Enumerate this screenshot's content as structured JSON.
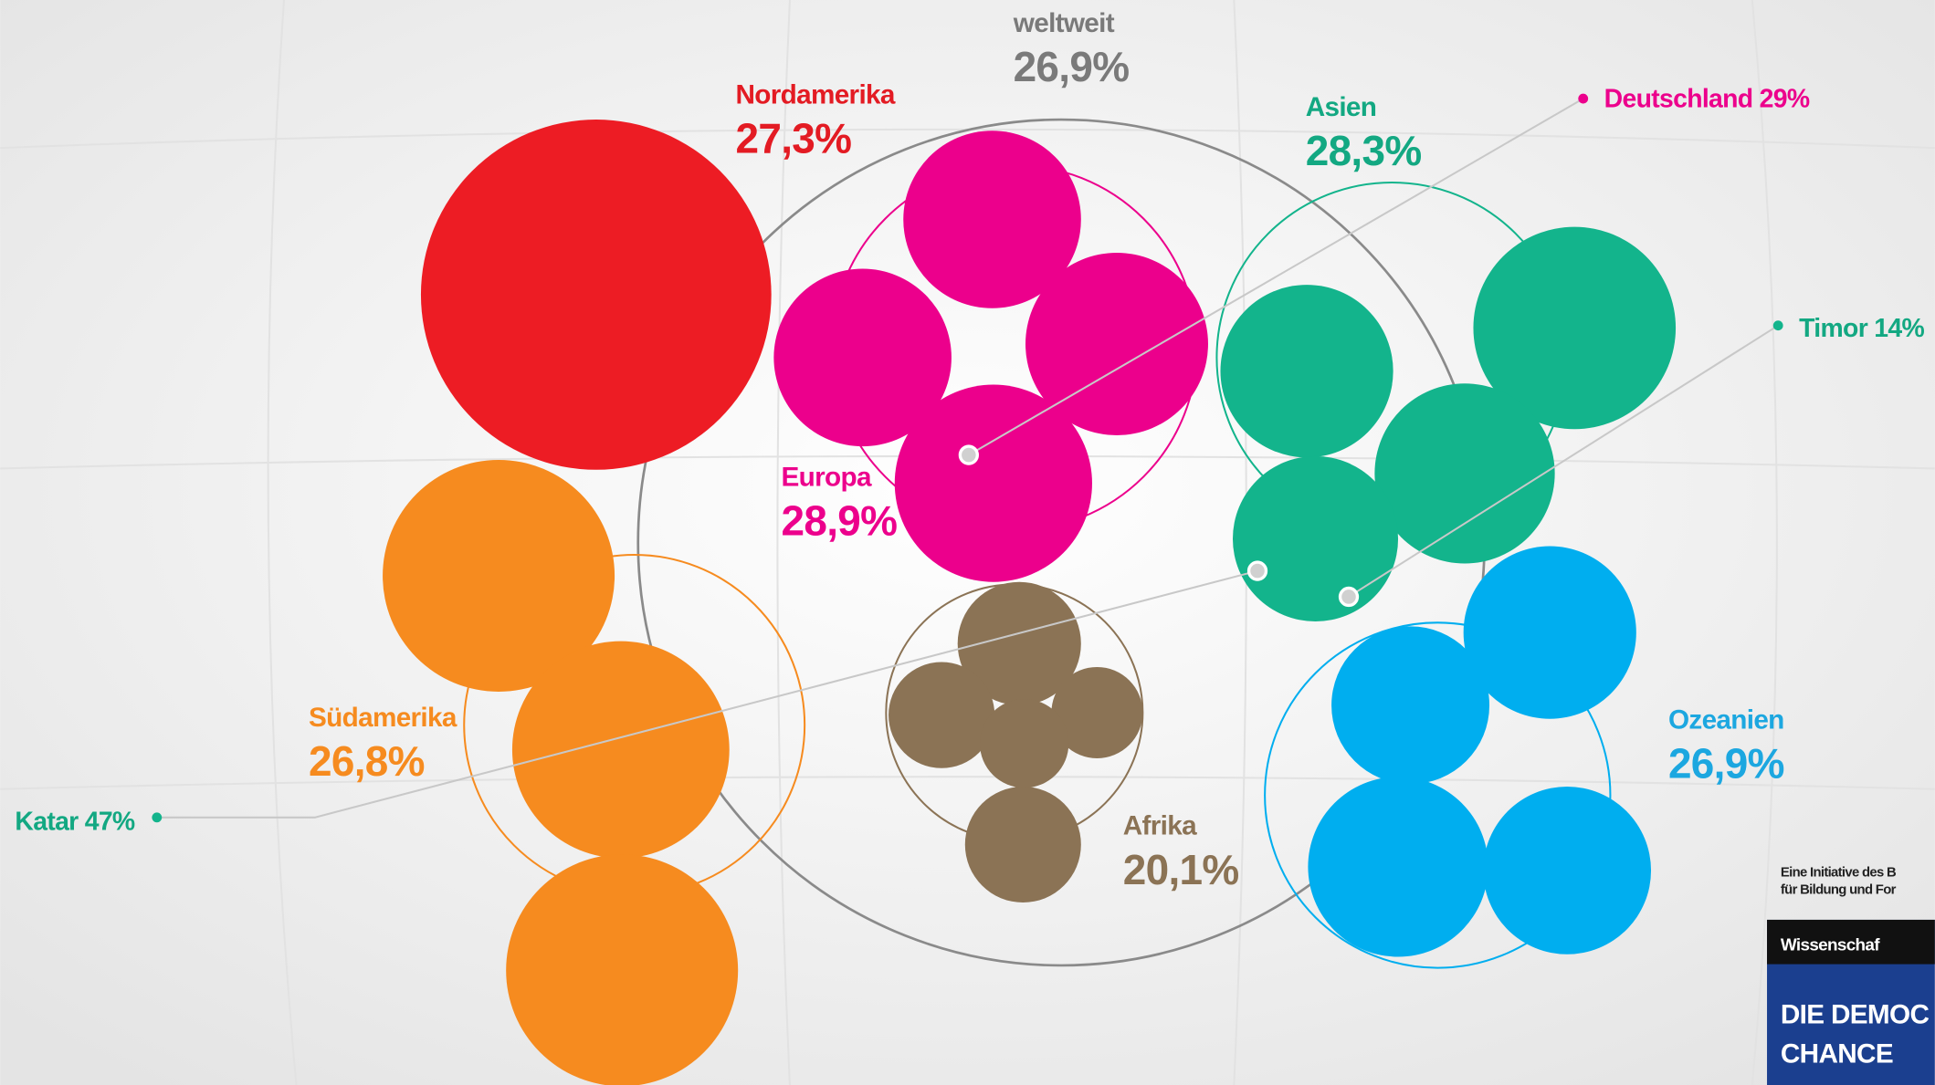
{
  "world": {
    "name": "weltweit",
    "value": "26,9%"
  },
  "regions": [
    {
      "name": "Nordamerika",
      "value": "27,3%"
    },
    {
      "name": "Europa",
      "value": "28,9%"
    },
    {
      "name": "Asien",
      "value": "28,3%"
    },
    {
      "name": "Südamerika",
      "value": "26,8%"
    },
    {
      "name": "Afrika",
      "value": "20,1%"
    },
    {
      "name": "Ozeanien",
      "value": "26,9%"
    }
  ],
  "callouts": [
    "Deutschland 29%",
    "Timor 14%",
    "Katar 47%"
  ],
  "footer": {
    "line1": "Eine Initiative des B",
    "line2": "für Bildung und For",
    "badge": "Wissenschaf",
    "title1": "DIE DEMOC",
    "title2": "CHANCE"
  }
}
